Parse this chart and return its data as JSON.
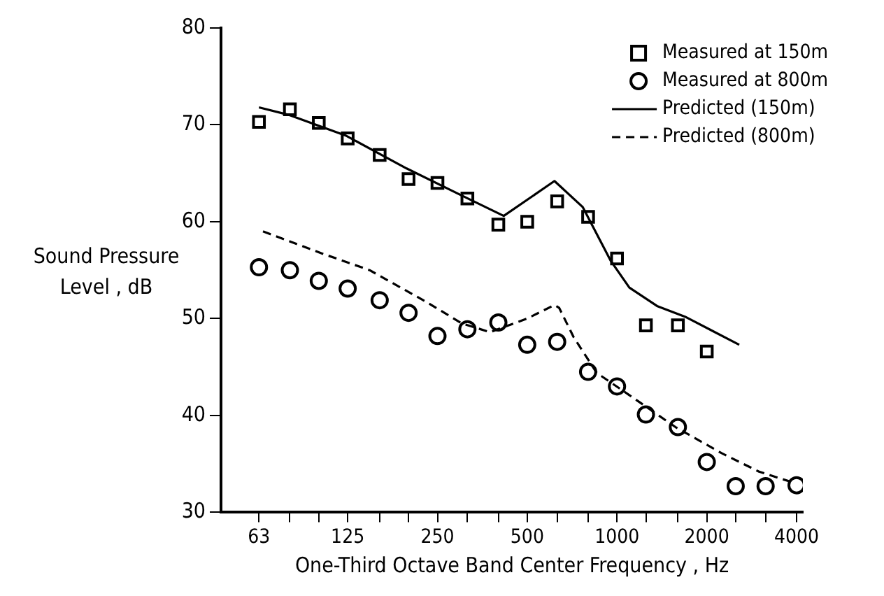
{
  "chart_data": {
    "type": "scatter",
    "xlabel": "One-Third Octave Band Center Frequency , Hz",
    "ylabel": "Sound Pressure Level , dB",
    "log": "x",
    "grid": false,
    "legend": "top right",
    "xlim": [
      47,
      4200
    ],
    "xticks": [
      63,
      {
        "value": 80,
        "label": null
      },
      {
        "value": 100,
        "label": null
      },
      125,
      {
        "value": 160,
        "label": null
      },
      {
        "value": 200,
        "label": null
      },
      250,
      {
        "value": 315,
        "label": null
      },
      {
        "value": 400,
        "label": null
      },
      500,
      {
        "value": 630,
        "label": null
      },
      {
        "value": 800,
        "label": null
      },
      1000,
      {
        "value": 1250,
        "label": null
      },
      {
        "value": 1600,
        "label": null
      },
      2000,
      {
        "value": 2500,
        "label": null
      },
      {
        "value": 3150,
        "label": null
      },
      4000
    ],
    "ylim": [
      30,
      80
    ],
    "yticks": [
      30,
      40,
      50,
      60,
      70,
      80
    ],
    "series": [
      {
        "name": "Measured at 150m",
        "marker": "square",
        "color": "#000000",
        "x": [
          63,
          80,
          100,
          125,
          160,
          200,
          250,
          315,
          400,
          500,
          630,
          800,
          1000,
          1250,
          1600,
          2000
        ],
        "values": [
          70.3,
          71.6,
          70.2,
          68.6,
          66.9,
          64.4,
          64.0,
          62.4,
          59.7,
          60.0,
          62.1,
          60.5,
          56.2,
          49.3,
          49.3,
          46.6
        ]
      },
      {
        "name": "Measured at 800m",
        "marker": "circle",
        "color": "#000000",
        "x": [
          63,
          80,
          100,
          125,
          160,
          200,
          250,
          315,
          400,
          500,
          630,
          800,
          1000,
          1250,
          1600,
          2000,
          2500,
          3150,
          4000
        ],
        "values": [
          55.3,
          55.0,
          53.9,
          53.1,
          51.9,
          50.6,
          48.2,
          48.9,
          49.6,
          47.3,
          47.6,
          44.5,
          43.0,
          40.1,
          38.8,
          35.2,
          32.7,
          32.7,
          32.8
        ]
      },
      {
        "name": "Predicted (150m)",
        "type": "line",
        "line_style": "solid",
        "color": "#000000",
        "x": [
          63,
          80,
          123,
          197,
          302,
          417,
          617,
          768,
          951,
          1100,
          1362,
          1690,
          2570
        ],
        "values": [
          71.8,
          71.0,
          68.9,
          65.5,
          62.7,
          60.6,
          64.2,
          61.5,
          56.0,
          53.2,
          51.3,
          50.2,
          47.3
        ]
      },
      {
        "name": "Predicted (800m)",
        "type": "line",
        "line_style": "dashed",
        "color": "#000000",
        "x": [
          65,
          103,
          148,
          227,
          302,
          375,
          499,
          617,
          640,
          715,
          855,
          1100,
          1571,
          2245,
          2995,
          3781
        ],
        "values": [
          59.0,
          56.7,
          55.0,
          51.8,
          49.5,
          48.6,
          50.0,
          51.4,
          51.1,
          48.1,
          44.4,
          42.1,
          38.8,
          36.1,
          34.2,
          33.2
        ]
      }
    ]
  }
}
